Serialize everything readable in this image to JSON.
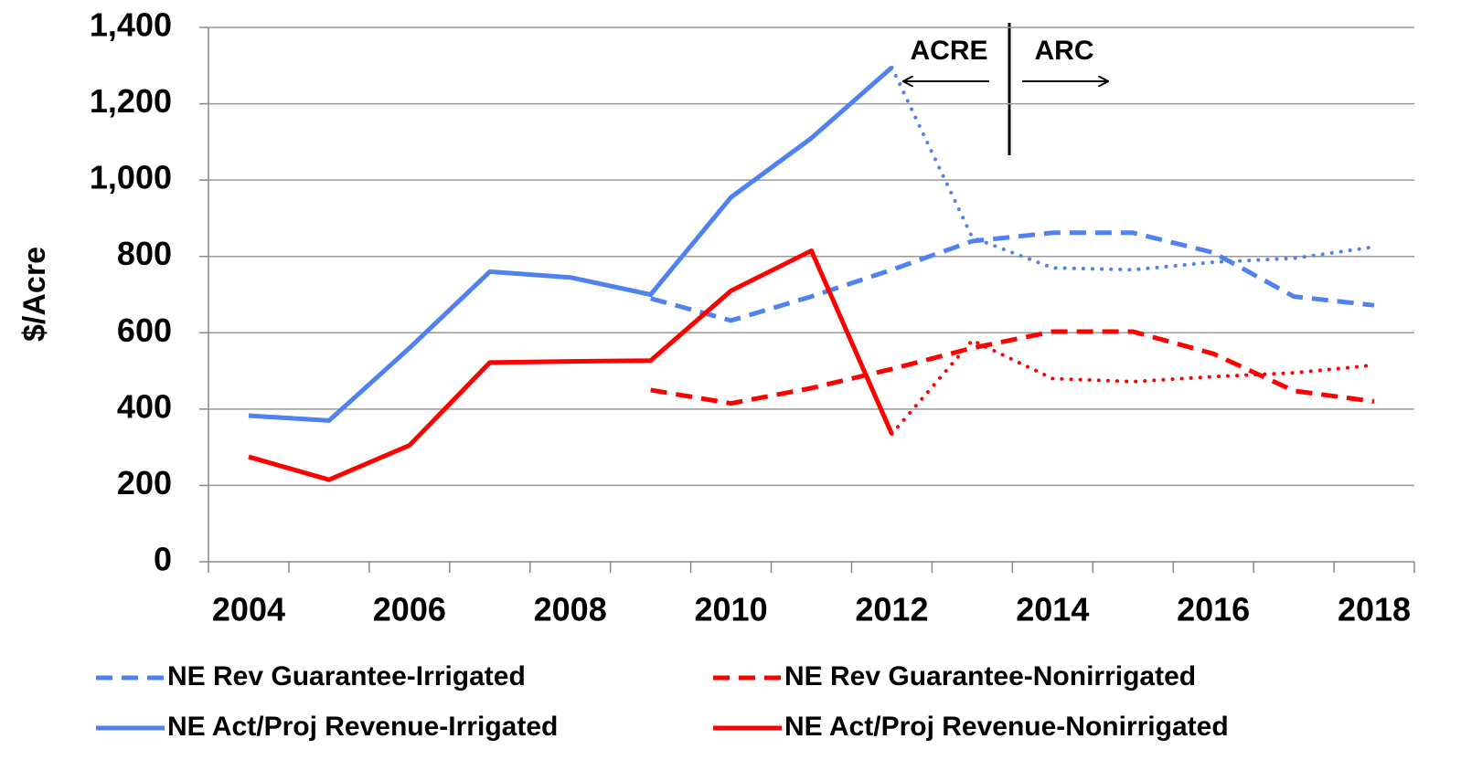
{
  "chart_data": {
    "type": "line",
    "y_label": "$/Acre",
    "annotations": [
      "ACRE",
      "ARC"
    ],
    "categories": [
      "2004",
      null,
      "2006",
      null,
      "2008",
      null,
      "2010",
      null,
      "2012",
      null,
      "2014",
      null,
      "2016",
      null,
      "2018"
    ],
    "ylim": [
      0,
      1400
    ],
    "yticks": [
      0,
      200,
      400,
      600,
      800,
      {
        "value": 1000,
        "label": "1,000"
      },
      {
        "value": 1200,
        "label": "1,200"
      },
      {
        "value": 1400,
        "label": "1,400"
      }
    ],
    "grid": true,
    "series": [
      {
        "name": "NE Rev Guarantee-Irrigated",
        "color": "#4f81f0",
        "style": "dashed",
        "values": [
          null,
          null,
          null,
          null,
          null,
          690,
          632,
          695,
          765,
          840,
          862,
          862,
          810,
          695,
          672
        ]
      },
      {
        "name": "NE Rev Guarantee-Nonirrigated",
        "color": "#ff0000",
        "style": "dashed",
        "values": [
          null,
          null,
          null,
          null,
          null,
          450,
          415,
          455,
          505,
          560,
          603,
          603,
          545,
          448,
          420
        ]
      },
      {
        "name": "NE Act/Proj Revenue-Irrigated",
        "color": "#4f81f0",
        "style": "solid",
        "values": [
          383,
          370,
          560,
          760,
          745,
          700,
          955,
          1110,
          1295,
          null,
          null,
          null,
          null,
          null,
          null
        ]
      },
      {
        "name": "NE Act/Proj Revenue-Nonirrigated",
        "color": "#ff0000",
        "style": "solid",
        "values": [
          275,
          215,
          305,
          522,
          525,
          527,
          710,
          815,
          335,
          null,
          null,
          null,
          null,
          null,
          null
        ]
      },
      {
        "color": "#4f81f0",
        "style": "dotted",
        "values": [
          null,
          null,
          null,
          null,
          null,
          null,
          null,
          null,
          1295,
          850,
          770,
          765,
          785,
          795,
          825
        ]
      },
      {
        "color": "#ff0000",
        "style": "dotted",
        "values": [
          null,
          null,
          null,
          null,
          null,
          null,
          null,
          null,
          335,
          580,
          480,
          472,
          485,
          495,
          515
        ]
      }
    ]
  }
}
